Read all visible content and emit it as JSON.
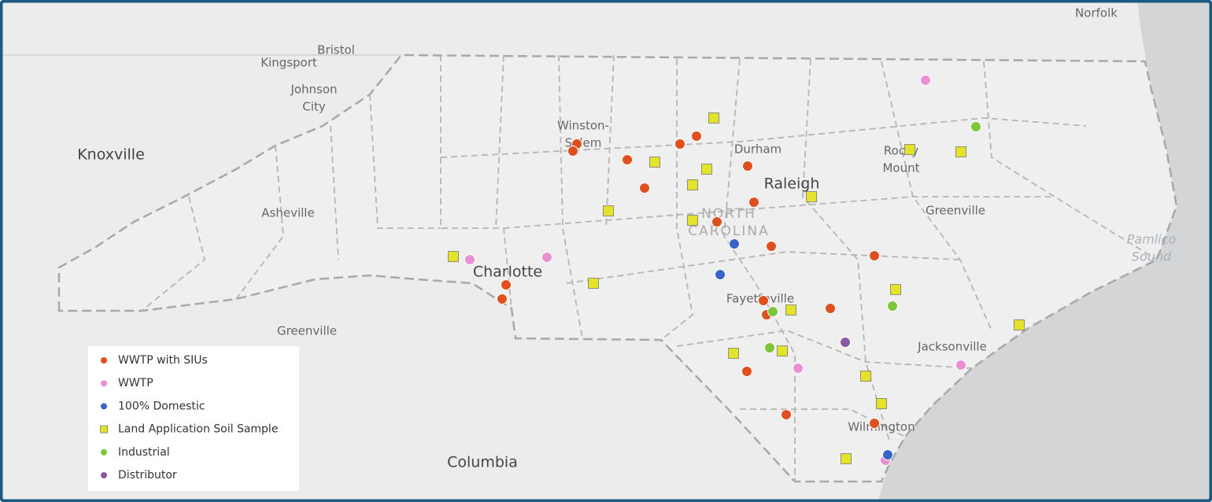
{
  "places": [
    {
      "lines": [
        "Norfolk"
      ]
    },
    {
      "lines": [
        "Bristol"
      ]
    },
    {
      "lines": [
        "Kingsport"
      ]
    },
    {
      "lines": [
        "Johnson",
        "City"
      ]
    },
    {
      "lines": [
        "Knoxville"
      ]
    },
    {
      "lines": [
        "Winston-",
        "Salem"
      ]
    },
    {
      "lines": [
        "Durham"
      ]
    },
    {
      "lines": [
        "Raleigh"
      ]
    },
    {
      "lines": [
        "Rocky",
        "Mount"
      ]
    },
    {
      "lines": [
        "Greenville"
      ]
    },
    {
      "lines": [
        "Asheville"
      ]
    },
    {
      "lines": [
        "NORTH",
        "CAROLINA"
      ]
    },
    {
      "lines": [
        "Charlotte"
      ]
    },
    {
      "lines": [
        "Fayetteville"
      ]
    },
    {
      "lines": [
        "Pamlico",
        "Sound"
      ]
    },
    {
      "lines": [
        "Greenville"
      ]
    },
    {
      "lines": [
        "Jacksonville"
      ]
    },
    {
      "lines": [
        "Wilmington"
      ]
    },
    {
      "lines": [
        "Columbia"
      ]
    }
  ],
  "legend": [
    {
      "label": "WWTP with SIUs",
      "color": "#e0501e",
      "shape": "circle"
    },
    {
      "label": "WWTP",
      "color": "#e98fd3",
      "shape": "circle"
    },
    {
      "label": "100% Domestic",
      "color": "#3a63c9",
      "shape": "circle"
    },
    {
      "label": "Land Application Soil Sample",
      "color": "#e3e32a",
      "shape": "square"
    },
    {
      "label": "Industrial",
      "color": "#7cc63c",
      "shape": "circle"
    },
    {
      "label": "Distributor",
      "color": "#8a5aa0",
      "shape": "circle"
    }
  ]
}
